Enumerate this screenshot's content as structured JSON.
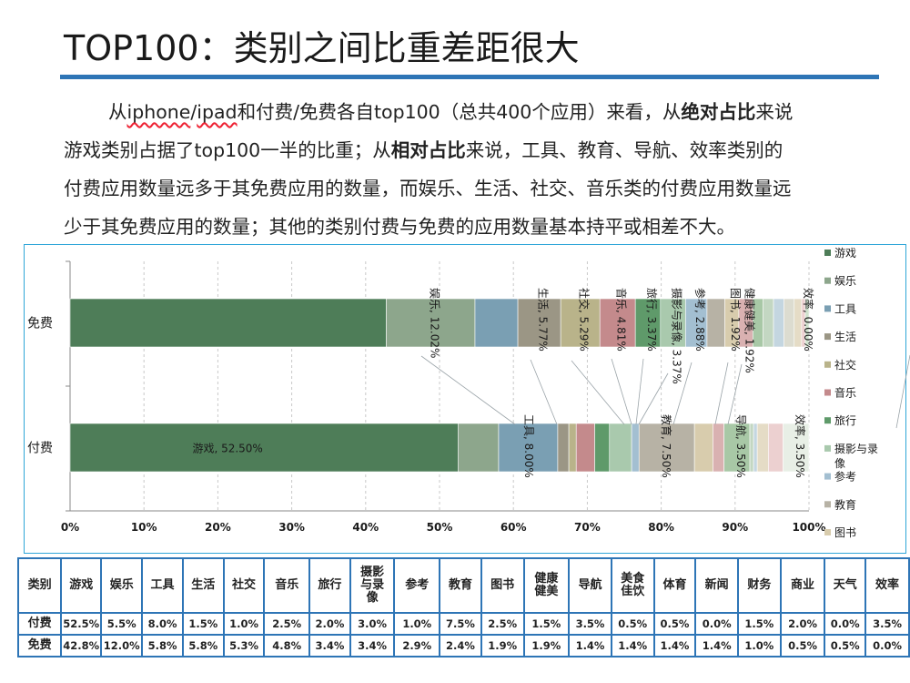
{
  "page": {
    "title": "TOP100：类别之间比重差距很大",
    "intro": {
      "line1": [
        {
          "t": "从",
          "s": ""
        },
        {
          "t": "iphone",
          "s": "squig"
        },
        {
          "t": "/",
          "s": ""
        },
        {
          "t": "ipad",
          "s": "squig"
        },
        {
          "t": "和付费/免费各自top100（总共400个应用）来看，从",
          "s": ""
        },
        {
          "t": "绝对占比",
          "s": "b"
        },
        {
          "t": "来说",
          "s": ""
        }
      ],
      "line2": [
        {
          "t": "游戏类别占据了top100一半的比重；从",
          "s": ""
        },
        {
          "t": "相对占比",
          "s": "b"
        },
        {
          "t": "来说，工具、教育、导航、效率类别的",
          "s": ""
        }
      ],
      "line3": [
        {
          "t": "付费应用数量远多于其免费应用的数量，而娱乐、生活、社交、音乐类的付费应用数量远",
          "s": ""
        }
      ],
      "line4": [
        {
          "t": "少于其免费应用的数量；其他的类别付费与免费的应用数量基本持平或相差不大。",
          "s": ""
        }
      ]
    }
  },
  "chart_data": {
    "type": "bar",
    "orientation": "horizontal",
    "stacked": "percent",
    "categories": [
      "免费",
      "付费"
    ],
    "x_ticks": [
      "0%",
      "10%",
      "20%",
      "30%",
      "40%",
      "50%",
      "60%",
      "70%",
      "80%",
      "90%",
      "100%"
    ],
    "xlim": [
      0,
      100
    ],
    "legend_position": "right",
    "series": [
      {
        "name": "游戏",
        "color": "#4e7d58",
        "values": [
          42.8,
          52.5
        ]
      },
      {
        "name": "娱乐",
        "color": "#8da68c",
        "values": [
          12.0,
          5.5
        ]
      },
      {
        "name": "工具",
        "color": "#7a9fb3",
        "values": [
          5.8,
          8.0
        ]
      },
      {
        "name": "生活",
        "color": "#9b9685",
        "values": [
          5.8,
          1.5
        ]
      },
      {
        "name": "社交",
        "color": "#b9b38a",
        "values": [
          5.3,
          1.0
        ]
      },
      {
        "name": "音乐",
        "color": "#c48a8c",
        "values": [
          4.8,
          2.5
        ]
      },
      {
        "name": "旅行",
        "color": "#5f9a6a",
        "values": [
          3.4,
          2.0
        ]
      },
      {
        "name": "摄影与录像",
        "color": "#a9c9ad",
        "values": [
          3.4,
          3.0
        ]
      },
      {
        "name": "参考",
        "color": "#a3bfd1",
        "values": [
          2.9,
          1.0
        ]
      },
      {
        "name": "教育",
        "color": "#b7b2a5",
        "values": [
          2.4,
          7.5
        ]
      },
      {
        "name": "图书",
        "color": "#d8ccad",
        "values": [
          1.9,
          2.5
        ]
      },
      {
        "name": "健康健美",
        "color": "#d9b1b1",
        "values": [
          1.9,
          1.5
        ]
      },
      {
        "name": "导航",
        "color": "#a8c8a6",
        "values": [
          1.4,
          3.5
        ]
      },
      {
        "name": "美食佳饮",
        "color": "#c3d7c2",
        "values": [
          1.4,
          0.5
        ]
      },
      {
        "name": "体育",
        "color": "#c4d6e0",
        "values": [
          1.4,
          0.5
        ]
      },
      {
        "name": "新闻",
        "color": "#dcdcd0",
        "values": [
          1.4,
          0.0
        ]
      },
      {
        "name": "财务",
        "color": "#e5dcc6",
        "values": [
          1.0,
          1.5
        ]
      },
      {
        "name": "商业",
        "color": "#ecd0d0",
        "values": [
          0.5,
          2.0
        ]
      },
      {
        "name": "天气",
        "color": "#cfe2cd",
        "values": [
          0.5,
          0.0
        ]
      },
      {
        "name": "效率",
        "color": "#e8efe6",
        "values": [
          0.0,
          3.5
        ]
      }
    ],
    "legend_visible": [
      "游戏",
      "娱乐",
      "工具",
      "生活",
      "社交",
      "音乐",
      "旅行",
      "摄影与录像",
      "参考",
      "教育",
      "图书"
    ],
    "data_labels": {
      "免费": [
        {
          "series": "娱乐",
          "text": "娱乐, 12.02%"
        },
        {
          "series": "生活",
          "text": "生活, 5.77%"
        },
        {
          "series": "社交",
          "text": "社交, 5.29%"
        },
        {
          "series": "音乐",
          "text": "音乐, 4.81%"
        },
        {
          "series": "旅行",
          "text": "旅行, 3.37%"
        },
        {
          "series": "摄影与录像",
          "text": "摄影与录像, 3.37%"
        },
        {
          "series": "参考",
          "text": "参考, 2.88%"
        },
        {
          "series": "图书",
          "text": "图书, 1.92%"
        },
        {
          "series": "健康健美",
          "text": "健康健美, 1.92%"
        },
        {
          "series": "效率",
          "text": "效率, 0.00%"
        }
      ],
      "付费": [
        {
          "series": "游戏",
          "text": "游戏, 52.50%"
        },
        {
          "series": "工具",
          "text": "工具, 8.00%"
        },
        {
          "series": "教育",
          "text": "教育, 7.50%"
        },
        {
          "series": "导航",
          "text": "导航, 3.50%"
        },
        {
          "series": "效率",
          "text": "效率, 3.50%"
        }
      ]
    }
  },
  "table": {
    "headers": [
      "类别",
      "游戏",
      "娱乐",
      "工具",
      "生活",
      "社交",
      "音乐",
      "旅行",
      "摄影与录像",
      "参考",
      "教育",
      "图书",
      "健康健美",
      "导航",
      "美食佳饮",
      "体育",
      "新闻",
      "财务",
      "商业",
      "天气",
      "效率"
    ],
    "rows": [
      [
        "付费",
        "52.5%",
        "5.5%",
        "8.0%",
        "1.5%",
        "1.0%",
        "2.5%",
        "2.0%",
        "3.0%",
        "1.0%",
        "7.5%",
        "2.5%",
        "1.5%",
        "3.5%",
        "0.5%",
        "0.5%",
        "0.0%",
        "1.5%",
        "2.0%",
        "0.0%",
        "3.5%"
      ],
      [
        "免费",
        "42.8%",
        "12.0%",
        "5.8%",
        "5.8%",
        "5.3%",
        "4.8%",
        "3.4%",
        "3.4%",
        "2.9%",
        "2.4%",
        "1.9%",
        "1.9%",
        "1.4%",
        "1.4%",
        "1.4%",
        "1.4%",
        "1.0%",
        "0.5%",
        "0.5%",
        "0.0%"
      ]
    ]
  }
}
